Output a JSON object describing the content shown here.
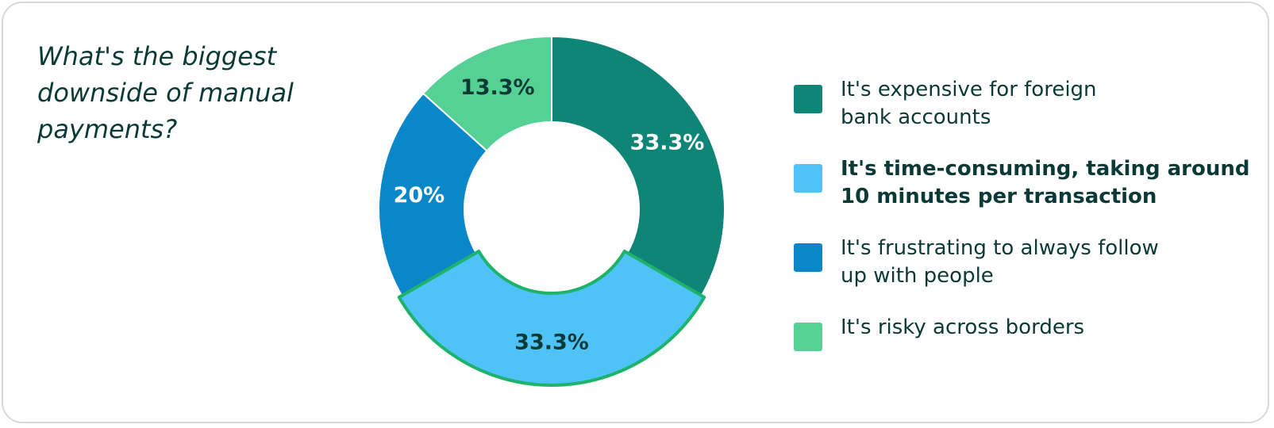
{
  "question": "What's the biggest downside of manual payments?",
  "colors": {
    "text": "#0b3a36",
    "highlight_border": "#1db36b",
    "card_border": "#d9d9d9"
  },
  "chart_data": {
    "type": "pie",
    "donut": true,
    "title": "What's the biggest downside of manual payments?",
    "categories": [
      "It's expensive for foreign bank accounts",
      "It's time-consuming, taking around 10 minutes per transaction",
      "It's frustrating to always follow up with people",
      "It's risky across borders"
    ],
    "values": [
      33.3,
      33.3,
      20,
      13.3
    ],
    "labels": [
      "33.3%",
      "33.3%",
      "20%",
      "13.3%"
    ],
    "colors": [
      "#0f8577",
      "#4fc3f7",
      "#0a87c9",
      "#55d196"
    ],
    "label_colors": [
      "#ffffff",
      "#0b3a36",
      "#ffffff",
      "#0b3a36"
    ],
    "highlighted": "It's time-consuming, taking around 10 minutes per transaction",
    "legend_position": "right"
  },
  "legend": [
    {
      "text": "It's expensive for foreign bank accounts",
      "lines": [
        "It's expensive for foreign",
        "bank accounts"
      ],
      "color": "#0f8577",
      "bold": false
    },
    {
      "text": "It's time-consuming, taking around 10 minutes per transaction",
      "lines": [
        "It's time-consuming, taking around",
        "10 minutes per transaction"
      ],
      "color": "#4fc3f7",
      "bold": true
    },
    {
      "text": "It's frustrating to always follow up with people",
      "lines": [
        "It's frustrating to always follow",
        "up with people"
      ],
      "color": "#0a87c9",
      "bold": false
    },
    {
      "text": "It's risky across borders",
      "lines": [
        "It's risky across borders"
      ],
      "color": "#55d196",
      "bold": false
    }
  ]
}
